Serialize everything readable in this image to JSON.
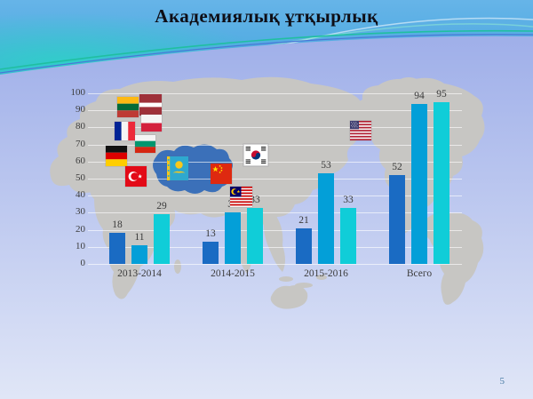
{
  "slide": {
    "title": "Академиялық ұтқырлық",
    "page_number": "5"
  },
  "chart_data": {
    "type": "bar",
    "title": "Академиялық ұтқырлық",
    "categories": [
      "2013-2014",
      "2014-2015",
      "2015-2016",
      "Всего"
    ],
    "series": [
      {
        "name": "dark-blue",
        "color": "#1A6BC3",
        "values": [
          18,
          13,
          21,
          52
        ]
      },
      {
        "name": "medium-blue",
        "color": "#039FD8",
        "values": [
          11,
          30,
          53,
          94
        ]
      },
      {
        "name": "cyan",
        "color": "#10CDD8",
        "values": [
          29,
          33,
          33,
          95
        ]
      }
    ],
    "ylim": [
      0,
      100
    ],
    "yticks": [
      0,
      10,
      20,
      30,
      40,
      50,
      60,
      70,
      80,
      90,
      100
    ],
    "grid": true,
    "legend_position": "none",
    "data_labels": true,
    "background": "gray world map with country flags, Kazakhstan highlighted"
  },
  "map": {
    "highlighted_country": "Kazakhstan",
    "flag_icons": [
      "Lithuania",
      "Latvia",
      "Poland",
      "France",
      "Bulgaria",
      "Germany",
      "Turkey",
      "Kazakhstan",
      "South Korea",
      "China",
      "Malaysia",
      "USA"
    ]
  },
  "colors": {
    "bar_dark_blue": "#1A6BC3",
    "bar_medium_blue": "#039FD8",
    "bar_cyan": "#10CDD8",
    "map_land": "#C7C6C3",
    "kazakhstan_fill": "#3B70B9",
    "label_text": "#3c3c3c",
    "background_body_top": "#9FAFE9",
    "background_body_bottom": "#E0E6F7"
  }
}
